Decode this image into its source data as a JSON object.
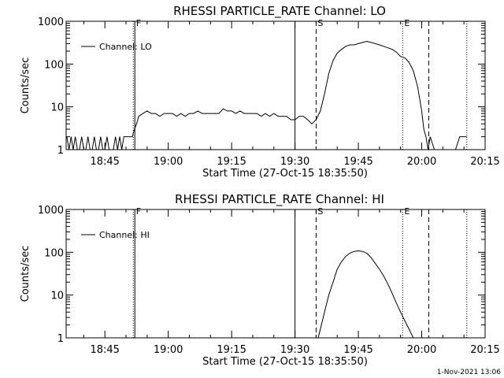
{
  "footer": "1-Nov-2021 13:06",
  "chart_data": [
    {
      "type": "line",
      "title": "RHESSI PARTICLE_RATE Channel: LO",
      "xlabel": "Start Time (27-Oct-15 18:35:50)",
      "ylabel": "Counts/sec",
      "yscale": "log",
      "ylim": [
        1,
        1000
      ],
      "xlim": [
        "18:35:50",
        "20:15:00"
      ],
      "xticks": [
        "18:45",
        "19:00",
        "19:15",
        "19:30",
        "19:45",
        "20:00",
        "20:15"
      ],
      "yticks": [
        "1",
        "10",
        "100",
        "1000"
      ],
      "legend": {
        "placement": "top-left",
        "entries": [
          "Channel: LO"
        ]
      },
      "markers": [
        {
          "label": "F",
          "time": "18:52:00",
          "style": "dotted-solid"
        },
        {
          "label": "",
          "time": "19:30:00",
          "style": "solid"
        },
        {
          "label": "S",
          "time": "19:35:00",
          "style": "dashed"
        },
        {
          "label": "E",
          "time": "19:55:30",
          "style": "dotted"
        },
        {
          "label": "",
          "time": "20:01:40",
          "style": "dashed"
        },
        {
          "label": "",
          "time": "20:10:40",
          "style": "dotted"
        }
      ],
      "series": [
        {
          "name": "Channel: LO",
          "x": [
            "18:36:00",
            "18:36:30",
            "18:37:00",
            "18:37:30",
            "18:38:00",
            "18:38:30",
            "18:39:00",
            "18:39:30",
            "18:40:00",
            "18:40:30",
            "18:41:00",
            "18:41:30",
            "18:42:00",
            "18:42:30",
            "18:43:00",
            "18:43:30",
            "18:44:00",
            "18:44:30",
            "18:45:00",
            "18:45:30",
            "18:46:00",
            "18:46:30",
            "18:47:00",
            "18:47:30",
            "18:48:00",
            "18:48:30",
            "18:49:00",
            "18:49:30",
            "18:50:00",
            "18:50:30",
            "18:51:00",
            "18:51:30",
            "18:52:00",
            "18:52:30",
            "18:53:00",
            "18:54:00",
            "18:55:00",
            "18:56:00",
            "18:57:00",
            "18:58:00",
            "18:59:00",
            "19:00:00",
            "19:01:00",
            "19:02:00",
            "19:03:00",
            "19:04:00",
            "19:05:00",
            "19:06:00",
            "19:07:00",
            "19:08:00",
            "19:09:00",
            "19:10:00",
            "19:11:00",
            "19:12:00",
            "19:13:00",
            "19:14:00",
            "19:15:00",
            "19:16:00",
            "19:17:00",
            "19:18:00",
            "19:19:00",
            "19:20:00",
            "19:21:00",
            "19:22:00",
            "19:23:00",
            "19:24:00",
            "19:25:00",
            "19:26:00",
            "19:27:00",
            "19:28:00",
            "19:29:00",
            "19:30:00",
            "19:31:00",
            "19:32:00",
            "19:33:00",
            "19:34:00",
            "19:35:00",
            "19:36:00",
            "19:37:00",
            "19:38:00",
            "19:39:00",
            "19:40:00",
            "19:41:00",
            "19:42:00",
            "19:43:00",
            "19:44:00",
            "19:45:00",
            "19:46:00",
            "19:47:00",
            "19:48:00",
            "19:49:00",
            "19:50:00",
            "19:51:00",
            "19:52:00",
            "19:53:00",
            "19:54:00",
            "19:55:00",
            "19:56:00",
            "19:57:00",
            "19:58:00",
            "19:59:00",
            "20:00:00",
            "20:00:30",
            "20:01:00",
            "20:01:30",
            "20:02:00",
            "20:03:00",
            "20:04:00",
            "20:05:00",
            "20:06:00",
            "20:07:00",
            "20:08:00",
            "20:09:00",
            "20:10:00",
            "20:10:40"
          ],
          "y": [
            2,
            1,
            2,
            1,
            2,
            1,
            1,
            2,
            1,
            1,
            2,
            1,
            1,
            2,
            1,
            1,
            2,
            1,
            1,
            2,
            1,
            1,
            1,
            2,
            1,
            2,
            1,
            2,
            2,
            2,
            2,
            2,
            3,
            4,
            6,
            7,
            8,
            7,
            7,
            6,
            7,
            7,
            7,
            6,
            7,
            6,
            7,
            7,
            8,
            7,
            7,
            7,
            7,
            7,
            9,
            8,
            8,
            7,
            8,
            7,
            7,
            7,
            7,
            6,
            7,
            6,
            7,
            6,
            6,
            6,
            5,
            5,
            6,
            6,
            5,
            4,
            5,
            8,
            20,
            60,
            120,
            180,
            220,
            260,
            280,
            280,
            300,
            320,
            340,
            320,
            300,
            280,
            260,
            240,
            220,
            190,
            150,
            140,
            110,
            70,
            30,
            8,
            3,
            2,
            1,
            2,
            1,
            1,
            1,
            1,
            1,
            1,
            2,
            2,
            2
          ]
        }
      ]
    },
    {
      "type": "line",
      "title": "RHESSI PARTICLE_RATE Channel: HI",
      "xlabel": "Start Time (27-Oct-15 18:35:50)",
      "ylabel": "Counts/sec",
      "yscale": "log",
      "ylim": [
        1,
        1000
      ],
      "xlim": [
        "18:35:50",
        "20:15:00"
      ],
      "xticks": [
        "18:45",
        "19:00",
        "19:15",
        "19:30",
        "19:45",
        "20:00",
        "20:15"
      ],
      "yticks": [
        "1",
        "10",
        "100",
        "1000"
      ],
      "legend": {
        "placement": "top-left",
        "entries": [
          "Channel: HI"
        ]
      },
      "markers": [
        {
          "label": "F",
          "time": "18:52:00",
          "style": "dotted-solid"
        },
        {
          "label": "",
          "time": "19:30:00",
          "style": "solid"
        },
        {
          "label": "S",
          "time": "19:35:00",
          "style": "dashed"
        },
        {
          "label": "E",
          "time": "19:55:30",
          "style": "dotted"
        },
        {
          "label": "",
          "time": "20:01:40",
          "style": "dashed"
        },
        {
          "label": "",
          "time": "20:10:40",
          "style": "dotted"
        }
      ],
      "series": [
        {
          "name": "Channel: HI",
          "x": [
            "19:35:30",
            "19:36:00",
            "19:37:00",
            "19:38:00",
            "19:39:00",
            "19:40:00",
            "19:41:00",
            "19:42:00",
            "19:43:00",
            "19:44:00",
            "19:45:00",
            "19:46:00",
            "19:47:00",
            "19:48:00",
            "19:49:00",
            "19:50:00",
            "19:51:00",
            "19:52:00",
            "19:53:00",
            "19:54:00",
            "19:55:00",
            "19:56:00",
            "19:57:00",
            "19:58:00"
          ],
          "y": [
            1,
            1.6,
            4,
            10,
            20,
            40,
            60,
            80,
            95,
            105,
            108,
            105,
            95,
            75,
            55,
            40,
            28,
            18,
            11,
            6.5,
            4,
            2.5,
            1.6,
            1
          ]
        }
      ]
    }
  ]
}
